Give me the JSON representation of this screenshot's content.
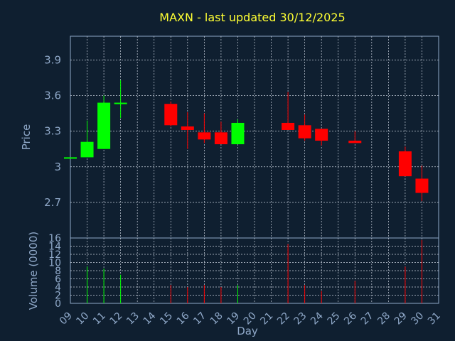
{
  "chart_data": {
    "type": "candlestick",
    "title": "MAXN - last updated 30/12/2025",
    "price_panel": {
      "ylabel": "Price",
      "ylim": [
        2.4,
        4.1
      ],
      "yticks": [
        2.7,
        3.0,
        3.3,
        3.6,
        3.9
      ],
      "ytick_labels": [
        "2.7",
        "3",
        "3.3",
        "3.6",
        "3.9"
      ],
      "grid": true
    },
    "volume_panel": {
      "ylabel": "Volume (0000)",
      "ylim": [
        0,
        16
      ],
      "yticks": [
        0,
        2,
        4,
        6,
        8,
        10,
        12,
        14,
        16
      ],
      "ytick_labels": [
        "0",
        "2",
        "4",
        "6",
        "8",
        "10",
        "12",
        "14",
        "16"
      ],
      "grid": true
    },
    "xlabel": "Day",
    "xlim": [
      9,
      31
    ],
    "xticks": [
      "09",
      "10",
      "11",
      "12",
      "13",
      "14",
      "15",
      "16",
      "17",
      "18",
      "19",
      "20",
      "21",
      "22",
      "23",
      "24",
      "25",
      "26",
      "27",
      "28",
      "29",
      "30",
      "31"
    ],
    "candles": [
      {
        "day": 9,
        "open": 3.08,
        "high": 3.08,
        "low": 3.08,
        "close": 3.08,
        "volume": 0
      },
      {
        "day": 10,
        "open": 3.08,
        "high": 3.39,
        "low": 3.08,
        "close": 3.21,
        "volume": 9
      },
      {
        "day": 11,
        "open": 3.15,
        "high": 3.6,
        "low": 3.15,
        "close": 3.54,
        "volume": 8.5
      },
      {
        "day": 12,
        "open": 3.53,
        "high": 3.73,
        "low": 3.41,
        "close": 3.54,
        "volume": 7
      },
      {
        "day": 15,
        "open": 3.53,
        "high": 3.55,
        "low": 3.34,
        "close": 3.35,
        "volume": 4.5
      },
      {
        "day": 16,
        "open": 3.34,
        "high": 3.46,
        "low": 3.15,
        "close": 3.31,
        "volume": 4
      },
      {
        "day": 17,
        "open": 3.29,
        "high": 3.45,
        "low": 3.2,
        "close": 3.23,
        "volume": 4.5
      },
      {
        "day": 18,
        "open": 3.29,
        "high": 3.38,
        "low": 3.19,
        "close": 3.19,
        "volume": 4
      },
      {
        "day": 19,
        "open": 3.19,
        "high": 3.4,
        "low": 3.19,
        "close": 3.37,
        "volume": 4.5
      },
      {
        "day": 22,
        "open": 3.37,
        "high": 3.63,
        "low": 3.31,
        "close": 3.31,
        "volume": 14.5
      },
      {
        "day": 23,
        "open": 3.35,
        "high": 3.44,
        "low": 3.22,
        "close": 3.24,
        "volume": 4.5
      },
      {
        "day": 24,
        "open": 3.32,
        "high": 3.32,
        "low": 3.18,
        "close": 3.22,
        "volume": 3
      },
      {
        "day": 26,
        "open": 3.22,
        "high": 3.3,
        "low": 3.2,
        "close": 3.2,
        "volume": 5.5
      },
      {
        "day": 29,
        "open": 3.13,
        "high": 3.17,
        "low": 2.92,
        "close": 2.92,
        "volume": 9
      },
      {
        "day": 30,
        "open": 2.9,
        "high": 3.01,
        "low": 2.71,
        "close": 2.78,
        "volume": 15.5
      }
    ],
    "colors": {
      "up": "#00ff00",
      "down": "#ff0000",
      "background": "#0f1f30",
      "grid": "#c8d0dc",
      "axis": "#8fa8c8",
      "title": "#ffff33"
    }
  }
}
